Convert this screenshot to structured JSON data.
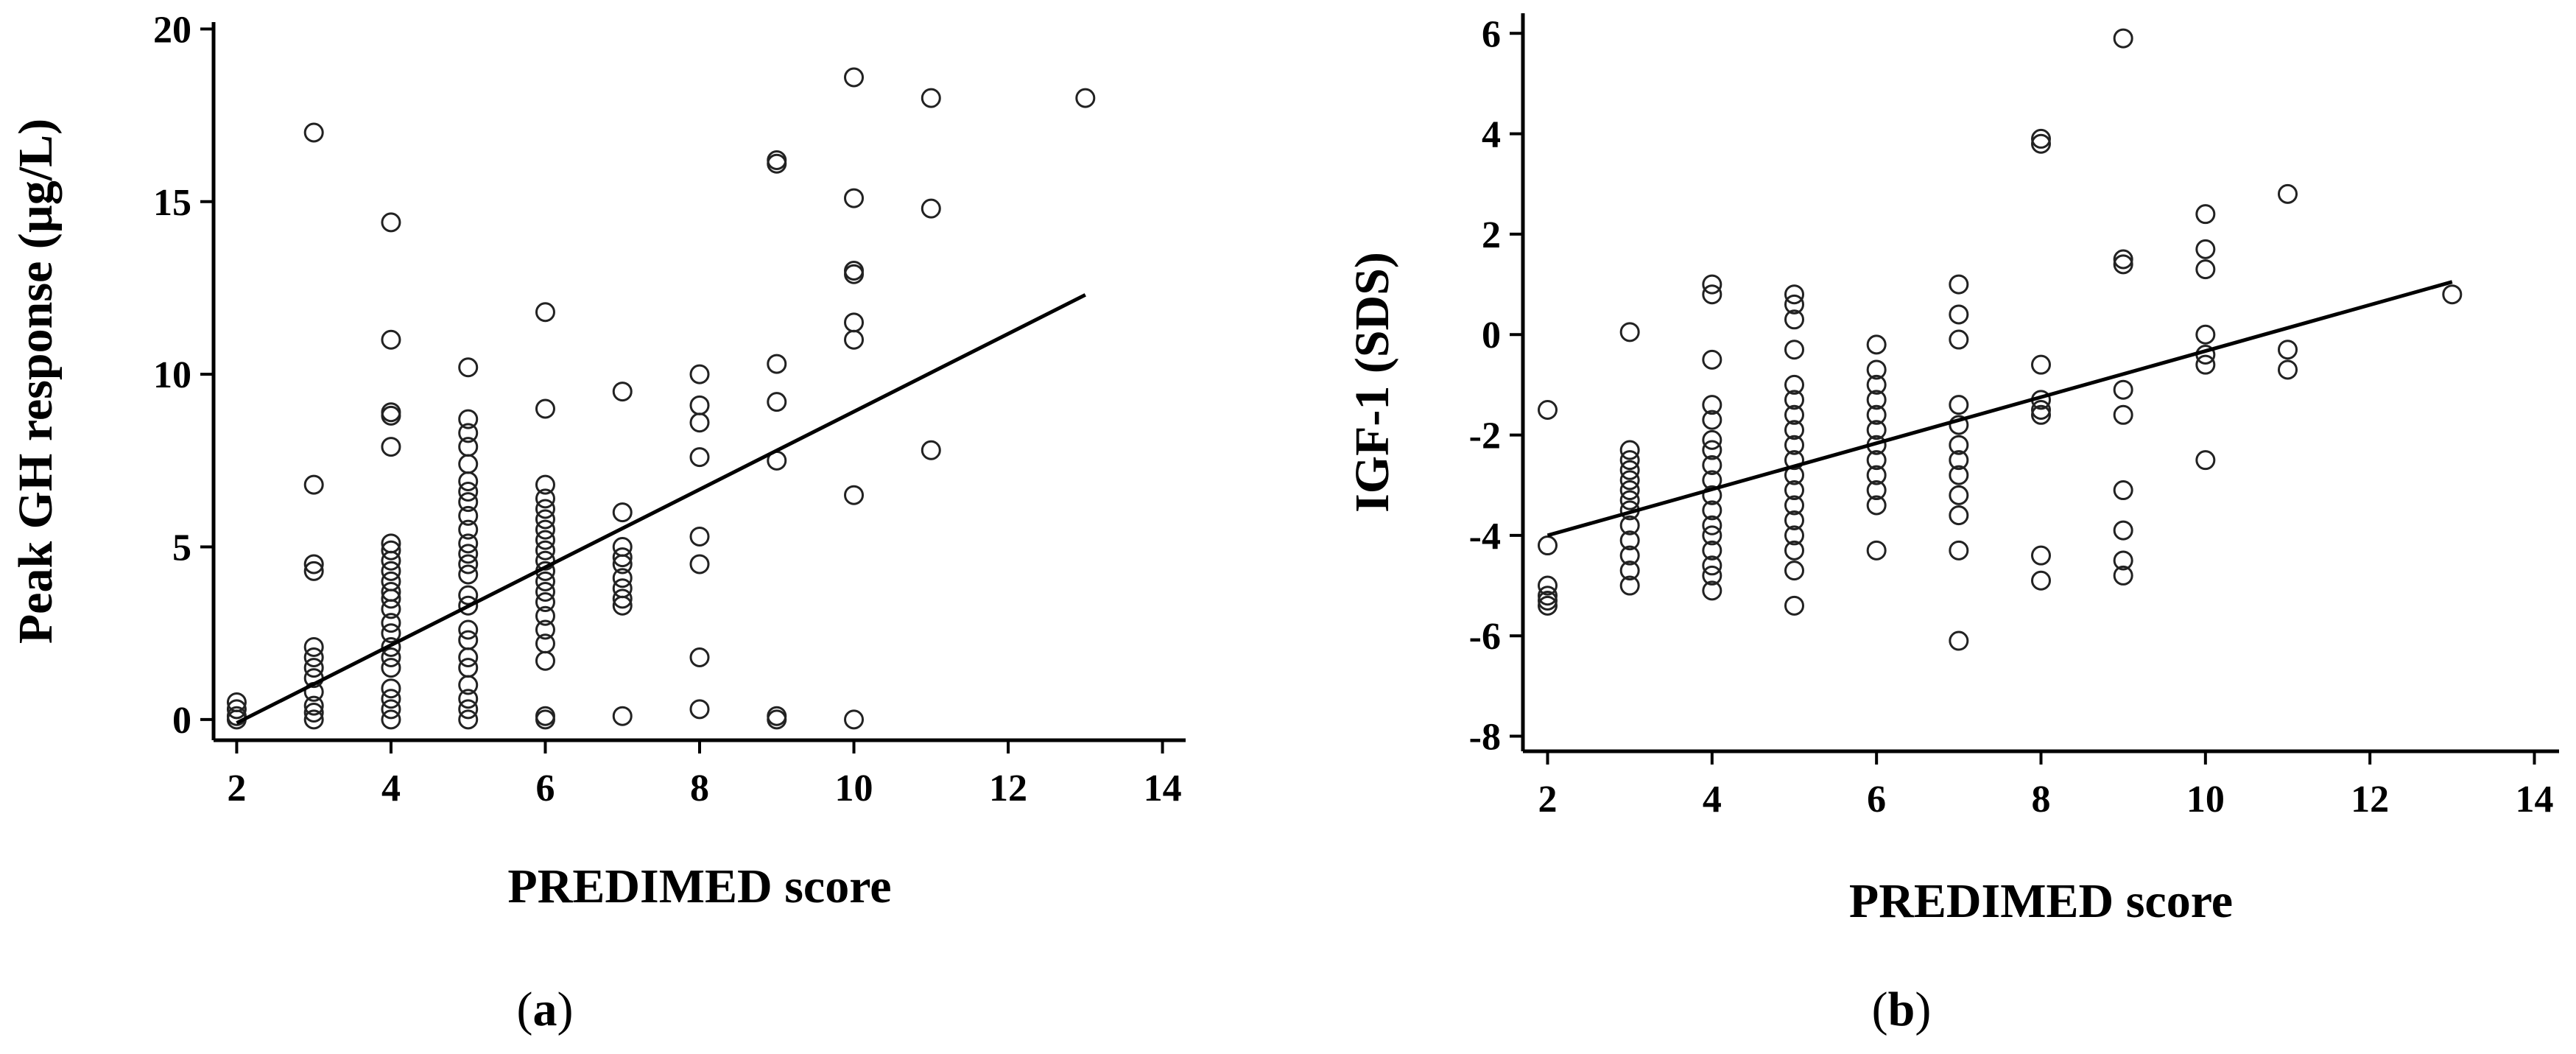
{
  "chart_data": [
    {
      "type": "scatter",
      "panel_label": "(a)",
      "panel_letter": "a",
      "xlabel": "PREDIMED score",
      "ylabel": "Peak GH response (µg/L)",
      "xlim": [
        1.7,
        14.3
      ],
      "ylim": [
        -0.6,
        20.2
      ],
      "xticks": [
        2,
        4,
        6,
        8,
        10,
        12,
        14
      ],
      "yticks": [
        0,
        5,
        10,
        15,
        20
      ],
      "trendline": {
        "x": [
          2,
          13
        ],
        "y": [
          -0.1,
          12.3
        ]
      },
      "points": [
        [
          2,
          0.5
        ],
        [
          2,
          0.3
        ],
        [
          2,
          0.1
        ],
        [
          2,
          0.0
        ],
        [
          3,
          17.0
        ],
        [
          3,
          6.8
        ],
        [
          3,
          4.5
        ],
        [
          3,
          4.3
        ],
        [
          3,
          2.1
        ],
        [
          3,
          1.8
        ],
        [
          3,
          1.5
        ],
        [
          3,
          1.2
        ],
        [
          3,
          0.8
        ],
        [
          3,
          0.4
        ],
        [
          3,
          0.2
        ],
        [
          3,
          0.0
        ],
        [
          4,
          14.4
        ],
        [
          4,
          11.0
        ],
        [
          4,
          8.9
        ],
        [
          4,
          8.8
        ],
        [
          4,
          7.9
        ],
        [
          4,
          5.1
        ],
        [
          4,
          4.9
        ],
        [
          4,
          4.6
        ],
        [
          4,
          4.3
        ],
        [
          4,
          4.0
        ],
        [
          4,
          3.7
        ],
        [
          4,
          3.5
        ],
        [
          4,
          3.2
        ],
        [
          4,
          2.8
        ],
        [
          4,
          2.5
        ],
        [
          4,
          2.1
        ],
        [
          4,
          1.8
        ],
        [
          4,
          1.5
        ],
        [
          4,
          0.9
        ],
        [
          4,
          0.6
        ],
        [
          4,
          0.3
        ],
        [
          4,
          0.0
        ],
        [
          5,
          10.2
        ],
        [
          5,
          8.7
        ],
        [
          5,
          8.3
        ],
        [
          5,
          7.9
        ],
        [
          5,
          7.4
        ],
        [
          5,
          6.9
        ],
        [
          5,
          6.6
        ],
        [
          5,
          6.3
        ],
        [
          5,
          5.9
        ],
        [
          5,
          5.5
        ],
        [
          5,
          5.1
        ],
        [
          5,
          4.8
        ],
        [
          5,
          4.5
        ],
        [
          5,
          4.2
        ],
        [
          5,
          3.6
        ],
        [
          5,
          3.3
        ],
        [
          5,
          2.6
        ],
        [
          5,
          2.3
        ],
        [
          5,
          1.8
        ],
        [
          5,
          1.5
        ],
        [
          5,
          1.0
        ],
        [
          5,
          0.6
        ],
        [
          5,
          0.3
        ],
        [
          5,
          0.0
        ],
        [
          6,
          11.8
        ],
        [
          6,
          9.0
        ],
        [
          6,
          6.8
        ],
        [
          6,
          6.4
        ],
        [
          6,
          6.1
        ],
        [
          6,
          5.8
        ],
        [
          6,
          5.5
        ],
        [
          6,
          5.2
        ],
        [
          6,
          4.9
        ],
        [
          6,
          4.6
        ],
        [
          6,
          4.3
        ],
        [
          6,
          4.0
        ],
        [
          6,
          3.7
        ],
        [
          6,
          3.4
        ],
        [
          6,
          3.0
        ],
        [
          6,
          2.6
        ],
        [
          6,
          2.2
        ],
        [
          6,
          1.7
        ],
        [
          6,
          0.1
        ],
        [
          6,
          0.0
        ],
        [
          7,
          9.5
        ],
        [
          7,
          6.0
        ],
        [
          7,
          5.0
        ],
        [
          7,
          4.7
        ],
        [
          7,
          4.5
        ],
        [
          7,
          4.1
        ],
        [
          7,
          3.8
        ],
        [
          7,
          3.5
        ],
        [
          7,
          3.3
        ],
        [
          7,
          0.1
        ],
        [
          8,
          10.0
        ],
        [
          8,
          9.1
        ],
        [
          8,
          8.6
        ],
        [
          8,
          7.6
        ],
        [
          8,
          5.3
        ],
        [
          8,
          4.5
        ],
        [
          8,
          1.8
        ],
        [
          8,
          0.3
        ],
        [
          9,
          16.2
        ],
        [
          9,
          16.1
        ],
        [
          9,
          10.3
        ],
        [
          9,
          9.2
        ],
        [
          9,
          7.5
        ],
        [
          9,
          0.1
        ],
        [
          9,
          0.0
        ],
        [
          10,
          18.6
        ],
        [
          10,
          15.1
        ],
        [
          10,
          13.0
        ],
        [
          10,
          12.9
        ],
        [
          10,
          11.5
        ],
        [
          10,
          11.0
        ],
        [
          10,
          6.5
        ],
        [
          10,
          0.0
        ],
        [
          11,
          18.0
        ],
        [
          11,
          14.8
        ],
        [
          11,
          7.8
        ],
        [
          13,
          18.0
        ]
      ]
    },
    {
      "type": "scatter",
      "panel_label": "(b)",
      "panel_letter": "b",
      "xlabel": "PREDIMED score",
      "ylabel": "IGF-1 (SDS)",
      "xlim": [
        1.7,
        14.3
      ],
      "ylim": [
        -8.3,
        6.4
      ],
      "xticks": [
        2,
        4,
        6,
        8,
        10,
        12,
        14
      ],
      "yticks": [
        -8,
        -6,
        -4,
        -2,
        0,
        2,
        4,
        6
      ],
      "trendline": {
        "x": [
          2,
          13
        ],
        "y": [
          -4.0,
          1.05
        ]
      },
      "points": [
        [
          2,
          -1.5
        ],
        [
          2,
          -4.2
        ],
        [
          2,
          -5.0
        ],
        [
          2,
          -5.2
        ],
        [
          2,
          -5.3
        ],
        [
          2,
          -5.4
        ],
        [
          3,
          0.05
        ],
        [
          3,
          -2.3
        ],
        [
          3,
          -2.5
        ],
        [
          3,
          -2.7
        ],
        [
          3,
          -2.9
        ],
        [
          3,
          -3.1
        ],
        [
          3,
          -3.3
        ],
        [
          3,
          -3.5
        ],
        [
          3,
          -3.8
        ],
        [
          3,
          -4.1
        ],
        [
          3,
          -4.4
        ],
        [
          3,
          -4.7
        ],
        [
          3,
          -5.0
        ],
        [
          4,
          1.0
        ],
        [
          4,
          0.8
        ],
        [
          4,
          -0.5
        ],
        [
          4,
          -1.4
        ],
        [
          4,
          -1.7
        ],
        [
          4,
          -2.1
        ],
        [
          4,
          -2.3
        ],
        [
          4,
          -2.6
        ],
        [
          4,
          -2.9
        ],
        [
          4,
          -3.2
        ],
        [
          4,
          -3.5
        ],
        [
          4,
          -3.8
        ],
        [
          4,
          -4.0
        ],
        [
          4,
          -4.3
        ],
        [
          4,
          -4.6
        ],
        [
          4,
          -4.8
        ],
        [
          4,
          -5.1
        ],
        [
          5,
          0.8
        ],
        [
          5,
          0.6
        ],
        [
          5,
          0.3
        ],
        [
          5,
          -0.3
        ],
        [
          5,
          -1.0
        ],
        [
          5,
          -1.3
        ],
        [
          5,
          -1.6
        ],
        [
          5,
          -1.9
        ],
        [
          5,
          -2.2
        ],
        [
          5,
          -2.5
        ],
        [
          5,
          -2.8
        ],
        [
          5,
          -3.1
        ],
        [
          5,
          -3.4
        ],
        [
          5,
          -3.7
        ],
        [
          5,
          -4.0
        ],
        [
          5,
          -4.3
        ],
        [
          5,
          -4.7
        ],
        [
          5,
          -5.4
        ],
        [
          6,
          -0.2
        ],
        [
          6,
          -0.7
        ],
        [
          6,
          -1.0
        ],
        [
          6,
          -1.3
        ],
        [
          6,
          -1.6
        ],
        [
          6,
          -1.9
        ],
        [
          6,
          -2.2
        ],
        [
          6,
          -2.5
        ],
        [
          6,
          -2.8
        ],
        [
          6,
          -3.1
        ],
        [
          6,
          -3.4
        ],
        [
          6,
          -4.3
        ],
        [
          7,
          1.0
        ],
        [
          7,
          0.4
        ],
        [
          7,
          -0.1
        ],
        [
          7,
          -1.4
        ],
        [
          7,
          -1.8
        ],
        [
          7,
          -2.2
        ],
        [
          7,
          -2.5
        ],
        [
          7,
          -2.8
        ],
        [
          7,
          -3.2
        ],
        [
          7,
          -3.6
        ],
        [
          7,
          -4.3
        ],
        [
          7,
          -6.1
        ],
        [
          8,
          3.9
        ],
        [
          8,
          3.8
        ],
        [
          8,
          -0.6
        ],
        [
          8,
          -1.3
        ],
        [
          8,
          -1.5
        ],
        [
          8,
          -1.6
        ],
        [
          8,
          -4.4
        ],
        [
          8,
          -4.9
        ],
        [
          9,
          5.9
        ],
        [
          9,
          1.5
        ],
        [
          9,
          1.4
        ],
        [
          9,
          -1.1
        ],
        [
          9,
          -1.6
        ],
        [
          9,
          -3.1
        ],
        [
          9,
          -3.9
        ],
        [
          9,
          -4.5
        ],
        [
          9,
          -4.8
        ],
        [
          10,
          2.4
        ],
        [
          10,
          1.7
        ],
        [
          10,
          1.3
        ],
        [
          10,
          0.0
        ],
        [
          10,
          -0.4
        ],
        [
          10,
          -0.6
        ],
        [
          10,
          -2.5
        ],
        [
          11,
          2.8
        ],
        [
          11,
          -0.3
        ],
        [
          11,
          -0.7
        ],
        [
          13,
          0.8
        ]
      ]
    }
  ]
}
